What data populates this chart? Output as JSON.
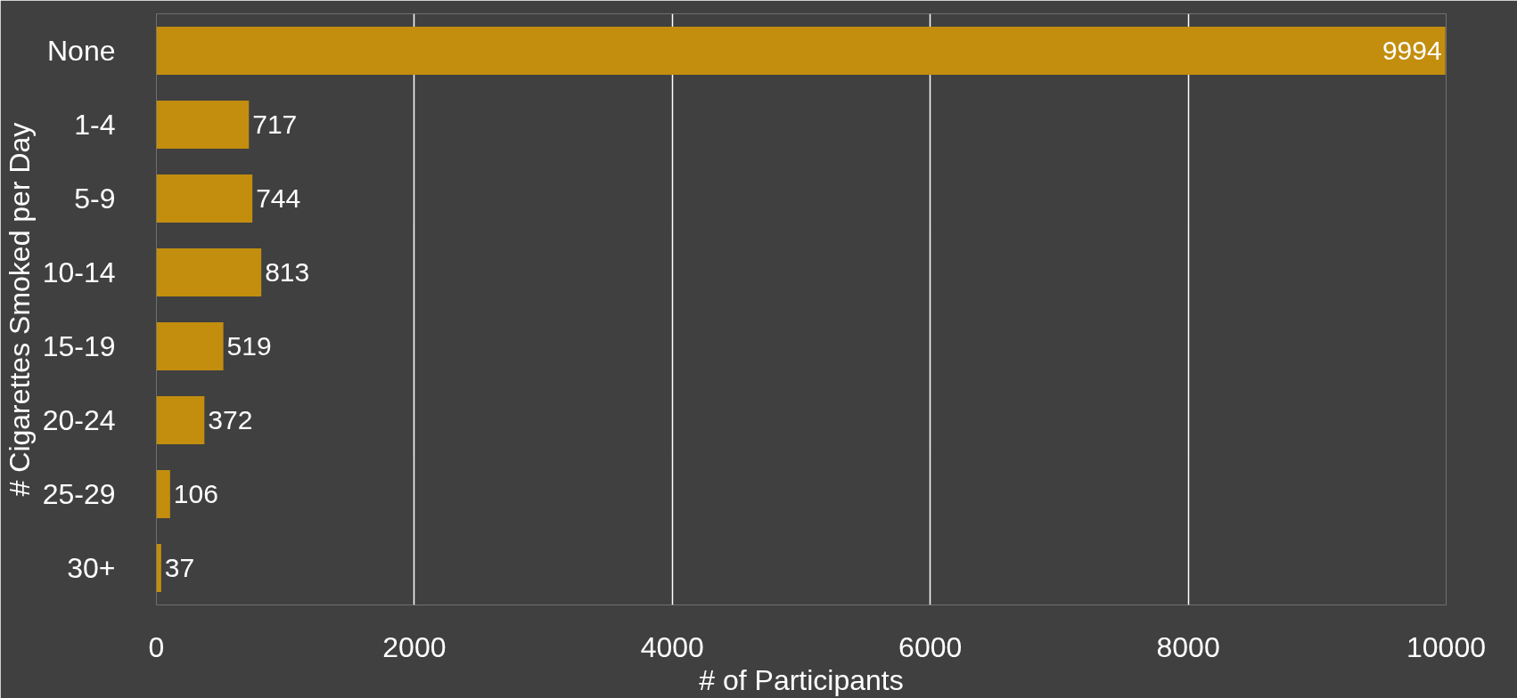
{
  "chart_data": {
    "type": "bar",
    "orientation": "horizontal",
    "xlabel": "# of Participants",
    "ylabel": "# Cigarettes Smoked per Day",
    "categories": [
      "None",
      "1-4",
      "5-9",
      "10-14",
      "15-19",
      "20-24",
      "25-29",
      "30+"
    ],
    "values": [
      9994,
      717,
      744,
      813,
      519,
      372,
      106,
      37
    ],
    "color": "#c38e0e",
    "xlim": [
      0,
      10000
    ],
    "xticks": [
      0,
      2000,
      4000,
      6000,
      8000,
      10000
    ],
    "grid": "x",
    "data_labels": true
  }
}
